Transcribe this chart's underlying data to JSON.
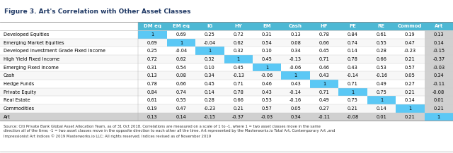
{
  "title": "Figure 3. Art's Correlation with Other Asset Classes",
  "columns": [
    "DM eq",
    "EM eq",
    "IG",
    "HY",
    "EM",
    "Cash",
    "HF",
    "PE",
    "RE",
    "Commod",
    "Art"
  ],
  "rows": [
    "Developed Equities",
    "Emerging Market Equities",
    "Developed Investment Grade Fixed Income",
    "High Yield Fixed Income",
    "Emerging Fixed Income",
    "Cash",
    "Hedge Funds",
    "Private Equity",
    "Real Estate",
    "Commodities",
    "Art"
  ],
  "data": [
    [
      1,
      0.69,
      0.25,
      0.72,
      0.31,
      0.13,
      0.78,
      0.84,
      0.61,
      0.19,
      0.13
    ],
    [
      0.69,
      1,
      -0.04,
      0.62,
      0.54,
      0.08,
      0.66,
      0.74,
      0.55,
      0.47,
      0.14
    ],
    [
      0.25,
      -0.04,
      1,
      0.32,
      0.1,
      0.34,
      0.45,
      0.14,
      0.28,
      -0.23,
      -0.15
    ],
    [
      0.72,
      0.62,
      0.32,
      1,
      0.45,
      -0.13,
      0.71,
      0.78,
      0.66,
      0.21,
      -0.37
    ],
    [
      0.31,
      0.54,
      0.1,
      0.45,
      1,
      -0.06,
      0.46,
      0.43,
      0.53,
      0.57,
      -0.03
    ],
    [
      0.13,
      0.08,
      0.34,
      -0.13,
      -0.06,
      1,
      0.43,
      -0.14,
      -0.16,
      0.05,
      0.34
    ],
    [
      0.78,
      0.66,
      0.45,
      0.71,
      0.46,
      0.43,
      1,
      0.71,
      0.49,
      0.27,
      -0.11
    ],
    [
      0.84,
      0.74,
      0.14,
      0.78,
      0.43,
      -0.14,
      0.71,
      1,
      0.75,
      0.21,
      -0.08
    ],
    [
      0.61,
      0.55,
      0.28,
      0.66,
      0.53,
      -0.16,
      0.49,
      0.75,
      1,
      0.14,
      0.01
    ],
    [
      0.19,
      0.47,
      -0.23,
      0.21,
      0.57,
      0.05,
      0.27,
      0.21,
      0.14,
      1,
      0.21
    ],
    [
      0.13,
      0.14,
      -0.15,
      -0.37,
      -0.03,
      0.34,
      -0.11,
      -0.08,
      0.01,
      0.21,
      1
    ]
  ],
  "source_text": "Source: Citi Private Bank Global Asset Allocation Team, as of 31 Oct 2018. Correlations are measured on a scale of 1 to -1, where 1 = two asset classes move in the same\ndirection all of the time; -1 = two asset classes move in the opposite direction to each other all the time. Art represented by the Masterworks.io Total Art, Contemporary Art ,and\nImpressionist Art Indices © 2019 Masterworks.io LLC; All rights reserved. Indices revised as of November 2019",
  "diagonal_color": "#5bc8f5",
  "art_col_color": "#d0d0d0",
  "art_row_color": "#d0d0d0",
  "header_bg": "#4db8d4",
  "header_text": "#ffffff",
  "title_color": "#1f3864",
  "row_bg_alt": "#f5f5f5"
}
